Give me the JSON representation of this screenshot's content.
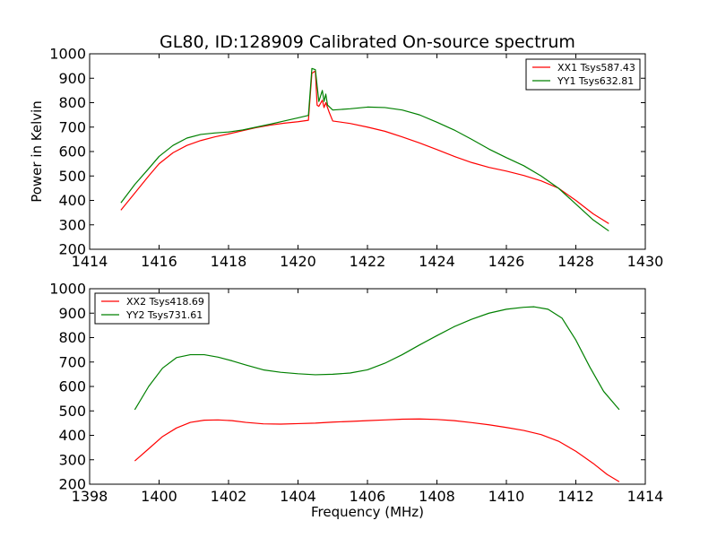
{
  "chart_data": [
    {
      "type": "line",
      "title": "GL80, ID:128909 Calibrated On-source spectrum",
      "xlabel": "",
      "ylabel": "Power in Kelvin",
      "xlim": [
        1414,
        1430
      ],
      "ylim": [
        200,
        1000
      ],
      "xticks": [
        1414,
        1416,
        1418,
        1420,
        1422,
        1424,
        1426,
        1428,
        1430
      ],
      "yticks": [
        200,
        300,
        400,
        500,
        600,
        700,
        800,
        900,
        1000
      ],
      "legend_position": "top-right",
      "series": [
        {
          "name": "XX1 Tsys587.43",
          "color": "#ff0000",
          "x": [
            1414.9,
            1415.3,
            1415.7,
            1416.0,
            1416.4,
            1416.8,
            1417.2,
            1417.6,
            1418.0,
            1418.4,
            1418.8,
            1419.2,
            1419.6,
            1420.0,
            1420.3,
            1420.4,
            1420.5,
            1420.55,
            1420.6,
            1420.7,
            1420.75,
            1420.8,
            1420.9,
            1421.0,
            1421.5,
            1422.0,
            1422.5,
            1423.0,
            1423.5,
            1424.0,
            1424.5,
            1425.0,
            1425.5,
            1426.0,
            1426.5,
            1427.0,
            1427.5,
            1428.0,
            1428.5,
            1428.95
          ],
          "y": [
            360,
            430,
            500,
            550,
            595,
            625,
            645,
            660,
            672,
            685,
            698,
            708,
            716,
            722,
            728,
            920,
            930,
            790,
            785,
            810,
            780,
            800,
            760,
            725,
            715,
            700,
            683,
            660,
            635,
            608,
            580,
            555,
            535,
            520,
            502,
            480,
            450,
            400,
            345,
            305
          ]
        },
        {
          "name": "YY1 Tsys632.81",
          "color": "#008000",
          "x": [
            1414.9,
            1415.3,
            1415.7,
            1416.0,
            1416.4,
            1416.8,
            1417.2,
            1417.6,
            1418.0,
            1418.4,
            1418.8,
            1419.2,
            1419.6,
            1420.0,
            1420.3,
            1420.4,
            1420.5,
            1420.6,
            1420.7,
            1420.75,
            1420.8,
            1420.85,
            1421.0,
            1421.5,
            1422.0,
            1422.5,
            1423.0,
            1423.5,
            1424.0,
            1424.5,
            1425.0,
            1425.5,
            1426.0,
            1426.5,
            1427.0,
            1427.5,
            1428.0,
            1428.5,
            1428.95
          ],
          "y": [
            390,
            465,
            530,
            580,
            625,
            655,
            670,
            676,
            680,
            688,
            700,
            712,
            725,
            738,
            748,
            940,
            935,
            805,
            850,
            805,
            835,
            790,
            770,
            775,
            782,
            780,
            770,
            750,
            720,
            688,
            650,
            610,
            575,
            542,
            500,
            450,
            385,
            320,
            275
          ]
        }
      ]
    },
    {
      "type": "line",
      "title": "",
      "xlabel": "Frequency (MHz)",
      "ylabel": "",
      "xlim": [
        1398,
        1414
      ],
      "ylim": [
        200,
        1000
      ],
      "xticks": [
        1398,
        1400,
        1402,
        1404,
        1406,
        1408,
        1410,
        1412,
        1414
      ],
      "yticks": [
        200,
        300,
        400,
        500,
        600,
        700,
        800,
        900,
        1000
      ],
      "legend_position": "top-left",
      "series": [
        {
          "name": "XX2 Tsys418.69",
          "color": "#ff0000",
          "x": [
            1399.3,
            1399.7,
            1400.1,
            1400.5,
            1400.9,
            1401.3,
            1401.7,
            1402.1,
            1402.5,
            1403.0,
            1403.5,
            1404.0,
            1404.5,
            1405.0,
            1405.5,
            1406.0,
            1406.5,
            1407.0,
            1407.5,
            1408.0,
            1408.5,
            1409.0,
            1409.5,
            1410.0,
            1410.5,
            1411.0,
            1411.5,
            1412.0,
            1412.5,
            1412.9,
            1413.25
          ],
          "y": [
            295,
            345,
            395,
            430,
            453,
            462,
            463,
            460,
            453,
            447,
            446,
            448,
            450,
            454,
            457,
            460,
            463,
            466,
            467,
            465,
            460,
            452,
            443,
            432,
            420,
            403,
            376,
            335,
            285,
            240,
            210
          ]
        },
        {
          "name": "YY2 Tsys731.61",
          "color": "#008000",
          "x": [
            1399.3,
            1399.7,
            1400.1,
            1400.5,
            1400.9,
            1401.3,
            1401.7,
            1402.1,
            1402.5,
            1403.0,
            1403.5,
            1404.0,
            1404.5,
            1405.0,
            1405.5,
            1406.0,
            1406.5,
            1407.0,
            1407.5,
            1408.0,
            1408.5,
            1409.0,
            1409.5,
            1410.0,
            1410.5,
            1410.8,
            1411.2,
            1411.6,
            1412.0,
            1412.4,
            1412.8,
            1413.25
          ],
          "y": [
            505,
            600,
            675,
            718,
            730,
            730,
            720,
            705,
            688,
            668,
            658,
            652,
            648,
            650,
            655,
            668,
            695,
            730,
            770,
            808,
            845,
            875,
            900,
            916,
            924,
            926,
            916,
            880,
            790,
            680,
            580,
            505
          ]
        }
      ]
    }
  ]
}
